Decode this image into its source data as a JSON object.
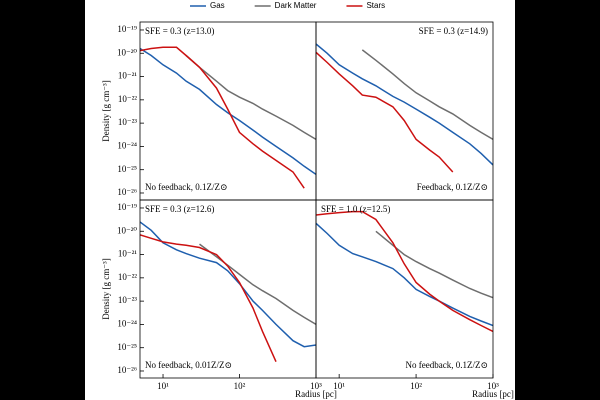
{
  "chart_data": [
    {
      "type": "line",
      "title": "SFE = 0.3 (z=13.0)",
      "note": "No feedback, 0.1Z/Z⊙",
      "title_corner": "upper left",
      "note_corner": "lower left",
      "ylabel": "Density [g cm⁻³]",
      "xlog": true,
      "ylog": true,
      "legend": "top",
      "xlim": [
        5,
        1000
      ],
      "ylim": [
        5e-27,
        2.2e-19
      ],
      "yticks": [
        {
          "value": 1e-19,
          "label": "10⁻¹⁹"
        },
        {
          "value": 1e-20,
          "label": "10⁻²⁰"
        },
        {
          "value": 1e-21,
          "label": "10⁻²¹"
        },
        {
          "value": 1e-22,
          "label": "10⁻²²"
        },
        {
          "value": 1e-23,
          "label": "10⁻²³"
        },
        {
          "value": 1e-24,
          "label": "10⁻²⁴"
        },
        {
          "value": 1e-25,
          "label": "10⁻²⁵"
        },
        {
          "value": 1e-26,
          "label": "10⁻²⁶"
        }
      ],
      "x": [
        5,
        7,
        10,
        15,
        20,
        30,
        50,
        70,
        100,
        150,
        200,
        300,
        500,
        700,
        1000
      ],
      "series": [
        {
          "name": "Gas",
          "color": "#1f5fae",
          "values": [
            1.6e-20,
            8e-21,
            3.2e-21,
            1.4e-21,
            6.3e-22,
            2.8e-22,
            6.3e-23,
            2.8e-23,
            1.3e-23,
            5e-24,
            2.5e-24,
            1e-24,
            3.2e-25,
            1.4e-25,
            6.3e-26
          ]
        },
        {
          "name": "Dark Matter",
          "color": "#6e6e6e",
          "values": [
            null,
            null,
            null,
            null,
            8e-21,
            2.5e-21,
            6.3e-22,
            2.5e-22,
            1.3e-22,
            7e-23,
            4e-23,
            2e-23,
            8e-24,
            4e-24,
            2e-24
          ]
        },
        {
          "name": "Stars",
          "color": "#cc1111",
          "values": [
            1.3e-20,
            1.6e-20,
            1.8e-20,
            1.8e-20,
            8e-21,
            2.5e-21,
            3.2e-22,
            4e-23,
            4e-24,
            1.3e-24,
            6.3e-25,
            2.5e-25,
            8e-26,
            1.6e-26,
            null
          ]
        }
      ]
    },
    {
      "type": "line",
      "title": "SFE = 0.3 (z=14.9)",
      "note": "Feedback, 0.1Z/Z⊙",
      "title_corner": "upper right",
      "note_corner": "lower right",
      "xlog": true,
      "ylog": true,
      "xlim": [
        5,
        1000
      ],
      "ylim": [
        5e-27,
        2.2e-19
      ],
      "x": [
        5,
        7,
        10,
        15,
        20,
        30,
        50,
        70,
        100,
        150,
        200,
        300,
        500,
        700,
        1000
      ],
      "series": [
        {
          "name": "Gas",
          "color": "#1f5fae",
          "values": [
            2.5e-20,
            1e-20,
            3.2e-21,
            1.4e-21,
            8e-22,
            4e-22,
            1.4e-22,
            8e-23,
            4e-23,
            1.8e-23,
            1e-23,
            4e-24,
            1.3e-24,
            5e-25,
            1.6e-25
          ]
        },
        {
          "name": "Dark Matter",
          "color": "#6e6e6e",
          "values": [
            null,
            null,
            null,
            null,
            1.4e-20,
            5e-21,
            1.3e-21,
            5e-22,
            2e-22,
            9e-23,
            5e-23,
            2.5e-23,
            8e-24,
            4e-24,
            2e-24
          ]
        },
        {
          "name": "Stars",
          "color": "#cc1111",
          "values": [
            1.1e-20,
            4e-21,
            1.3e-21,
            4e-22,
            1.6e-22,
            1.3e-22,
            5e-23,
            1.3e-23,
            2e-24,
            7e-25,
            3.5e-25,
            8e-26,
            null,
            null,
            null
          ]
        }
      ]
    },
    {
      "type": "line",
      "title": "SFE = 0.3 (z=12.6)",
      "note": "No feedback, 0.01Z/Z⊙",
      "title_corner": "upper left",
      "note_corner": "lower left",
      "xlabel": "Radius [pc]",
      "ylabel": "Density [g cm⁻³]",
      "xlog": true,
      "ylog": true,
      "xlim": [
        5,
        1000
      ],
      "ylim": [
        5e-27,
        2.2e-19
      ],
      "xticks": [
        {
          "value": 10,
          "label": "10¹"
        },
        {
          "value": 100,
          "label": "10²"
        },
        {
          "value": 1000,
          "label": "10³"
        }
      ],
      "yticks": [
        {
          "value": 1e-19,
          "label": "10⁻¹⁹"
        },
        {
          "value": 1e-20,
          "label": "10⁻²⁰"
        },
        {
          "value": 1e-21,
          "label": "10⁻²¹"
        },
        {
          "value": 1e-22,
          "label": "10⁻²²"
        },
        {
          "value": 1e-23,
          "label": "10⁻²³"
        },
        {
          "value": 1e-24,
          "label": "10⁻²⁴"
        },
        {
          "value": 1e-25,
          "label": "10⁻²⁵"
        },
        {
          "value": 1e-26,
          "label": "10⁻²⁶"
        }
      ],
      "x": [
        5,
        7,
        10,
        15,
        20,
        30,
        50,
        70,
        100,
        150,
        200,
        300,
        500,
        700,
        1000
      ],
      "series": [
        {
          "name": "Gas",
          "color": "#1f5fae",
          "values": [
            2.5e-20,
            1.1e-20,
            3.2e-21,
            1.6e-21,
            1.1e-21,
            7e-22,
            4.5e-22,
            2e-22,
            5.6e-23,
            1e-23,
            4e-24,
            1e-24,
            2e-25,
            1.1e-25,
            1.3e-25
          ]
        },
        {
          "name": "Dark Matter",
          "color": "#6e6e6e",
          "values": [
            null,
            null,
            null,
            null,
            null,
            2.8e-21,
            8e-22,
            3.5e-22,
            1.4e-22,
            5e-23,
            2.8e-23,
            1.3e-23,
            4e-24,
            2e-24,
            1e-24
          ]
        },
        {
          "name": "Stars",
          "color": "#cc1111",
          "values": [
            7e-21,
            5e-21,
            3.5e-21,
            2.8e-21,
            2.5e-21,
            2e-21,
            1e-21,
            3.2e-22,
            6.3e-23,
            5e-24,
            5e-25,
            2.5e-26,
            null,
            null,
            null
          ]
        }
      ]
    },
    {
      "type": "line",
      "title": "SFE = 1.0 (z=12.5)",
      "note": "No feedback, 0.1Z/Z⊙",
      "title_corner": "upper left",
      "note_corner": "lower right",
      "xlabel": "Radius [pc]",
      "xlog": true,
      "ylog": true,
      "xlim": [
        5,
        1000
      ],
      "ylim": [
        5e-27,
        2.2e-19
      ],
      "xticks": [
        {
          "value": 10,
          "label": "10¹"
        },
        {
          "value": 100,
          "label": "10²"
        },
        {
          "value": 1000,
          "label": "10³"
        }
      ],
      "x": [
        5,
        7,
        10,
        15,
        20,
        30,
        50,
        70,
        100,
        150,
        200,
        300,
        500,
        700,
        1000
      ],
      "series": [
        {
          "name": "Gas",
          "color": "#1f5fae",
          "values": [
            2.2e-20,
            8e-21,
            2.5e-21,
            1.1e-21,
            8e-22,
            5e-22,
            2.5e-22,
            1e-22,
            3.2e-23,
            1.6e-23,
            1e-23,
            5e-24,
            2.2e-24,
            1.4e-24,
            9e-25
          ]
        },
        {
          "name": "Dark Matter",
          "color": "#6e6e6e",
          "values": [
            null,
            null,
            null,
            null,
            null,
            1e-20,
            2.5e-21,
            1e-21,
            5e-22,
            2.5e-22,
            1.6e-22,
            8e-23,
            3.5e-23,
            2.2e-23,
            1.4e-23
          ]
        },
        {
          "name": "Stars",
          "color": "#cc1111",
          "values": [
            5e-20,
            5.6e-20,
            6.3e-20,
            7e-20,
            7e-20,
            3.2e-20,
            3.2e-21,
            4e-22,
            6.3e-23,
            2e-23,
            1e-23,
            4e-24,
            1.6e-24,
            9e-25,
            5e-25
          ]
        }
      ]
    }
  ]
}
